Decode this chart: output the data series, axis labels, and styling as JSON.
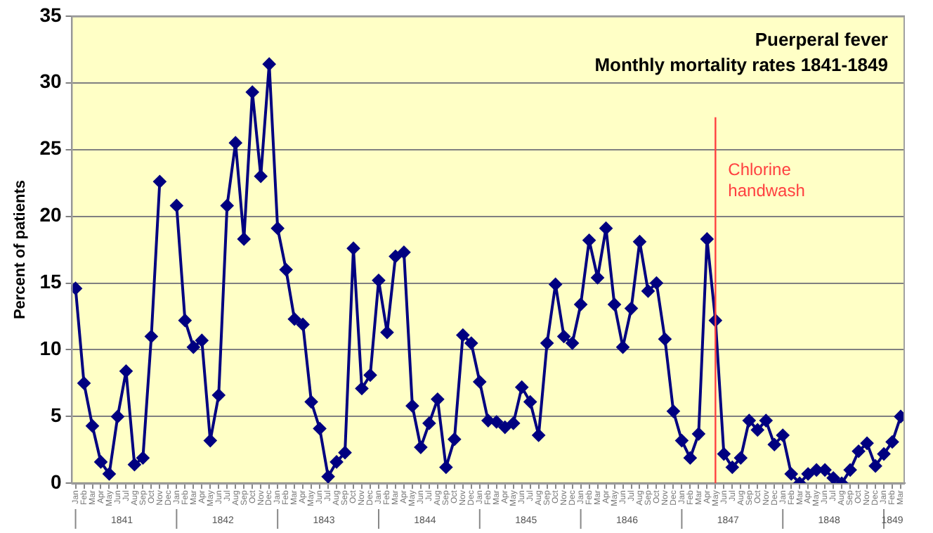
{
  "chart_data": {
    "type": "line",
    "title": "Puerperal fever",
    "subtitle": "Monthly mortality rates 1841-1849",
    "ylabel": "Percent of patients",
    "x": [
      "1841-01",
      "1841-02",
      "1841-03",
      "1841-04",
      "1841-05",
      "1841-06",
      "1841-07",
      "1841-08",
      "1841-09",
      "1841-10",
      "1841-11",
      "1841-12",
      "1842-01",
      "1842-02",
      "1842-03",
      "1842-04",
      "1842-05",
      "1842-06",
      "1842-07",
      "1842-08",
      "1842-09",
      "1842-10",
      "1842-11",
      "1842-12",
      "1843-01",
      "1843-02",
      "1843-03",
      "1843-04",
      "1843-05",
      "1843-06",
      "1843-07",
      "1843-08",
      "1843-09",
      "1843-10",
      "1843-11",
      "1843-12",
      "1844-01",
      "1844-02",
      "1844-03",
      "1844-04",
      "1844-05",
      "1844-06",
      "1844-07",
      "1844-08",
      "1844-09",
      "1844-10",
      "1844-11",
      "1844-12",
      "1845-01",
      "1845-02",
      "1845-03",
      "1845-04",
      "1845-05",
      "1845-06",
      "1845-07",
      "1845-08",
      "1845-09",
      "1845-10",
      "1845-11",
      "1845-12",
      "1846-01",
      "1846-02",
      "1846-03",
      "1846-04",
      "1846-05",
      "1846-06",
      "1846-07",
      "1846-08",
      "1846-09",
      "1846-10",
      "1846-11",
      "1846-12",
      "1847-01",
      "1847-02",
      "1847-03",
      "1847-04",
      "1847-05",
      "1847-06",
      "1847-07",
      "1847-08",
      "1847-09",
      "1847-10",
      "1847-11",
      "1847-12",
      "1848-01",
      "1848-02",
      "1848-03",
      "1848-04",
      "1848-05",
      "1848-06",
      "1848-07",
      "1848-08",
      "1848-09",
      "1848-10",
      "1848-11",
      "1848-12",
      "1849-01",
      "1849-02",
      "1849-03"
    ],
    "series": [
      {
        "color": "#000080",
        "values": [
          14.6,
          7.5,
          4.3,
          1.6,
          0.7,
          5.0,
          8.4,
          1.4,
          1.9,
          11.0,
          22.6,
          null,
          20.8,
          12.2,
          10.2,
          10.7,
          3.2,
          6.6,
          20.8,
          25.5,
          18.3,
          29.3,
          23.0,
          31.4,
          19.1,
          16.0,
          12.3,
          11.9,
          6.1,
          4.1,
          0.5,
          1.6,
          2.3,
          17.6,
          7.1,
          8.1,
          15.2,
          11.3,
          17.0,
          17.3,
          5.8,
          2.7,
          4.5,
          6.3,
          1.2,
          3.3,
          11.1,
          10.5,
          7.6,
          4.7,
          4.6,
          4.2,
          4.5,
          7.2,
          6.1,
          3.6,
          10.5,
          14.9,
          11.0,
          10.5,
          13.4,
          18.2,
          15.4,
          19.1,
          13.4,
          10.2,
          13.1,
          18.1,
          14.4,
          15.0,
          10.8,
          5.4,
          3.2,
          1.9,
          3.7,
          18.3,
          12.2,
          2.2,
          1.2,
          1.9,
          4.7,
          4.0,
          4.7,
          2.9,
          3.6,
          0.7,
          0.0,
          0.7,
          1.0,
          1.0,
          0.4,
          0.0,
          1.0,
          2.4,
          3.0,
          1.3,
          2.2,
          3.1,
          5.0
        ]
      }
    ],
    "marker": "diamond",
    "line_style": "solid",
    "grid": "y",
    "ylim": [
      0,
      35
    ],
    "yticks": [
      0,
      5,
      10,
      15,
      20,
      25,
      30,
      35
    ],
    "xlim": [
      "1840-12-16",
      "1849-03-16"
    ],
    "xticks": [
      {
        "value": "1841-01",
        "label": "Jan"
      },
      {
        "value": "1841-02",
        "label": "Feb"
      },
      {
        "value": "1841-03",
        "label": "Mar"
      },
      {
        "value": "1841-04",
        "label": "Apr"
      },
      {
        "value": "1841-05",
        "label": "May"
      },
      {
        "value": "1841-06",
        "label": "Jun"
      },
      {
        "value": "1841-07",
        "label": "Jul"
      },
      {
        "value": "1841-08",
        "label": "Aug"
      },
      {
        "value": "1841-09",
        "label": "Sep"
      },
      {
        "value": "1841-10",
        "label": "Oct"
      },
      {
        "value": "1841-11",
        "label": "Nov"
      },
      {
        "value": "1841-12",
        "label": "Dec"
      },
      {
        "value": "1842-01",
        "label": "Jan"
      },
      {
        "value": "1842-02",
        "label": "Feb"
      },
      {
        "value": "1842-03",
        "label": "Mar"
      },
      {
        "value": "1842-04",
        "label": "Apr"
      },
      {
        "value": "1842-05",
        "label": "May"
      },
      {
        "value": "1842-06",
        "label": "Jun"
      },
      {
        "value": "1842-07",
        "label": "Jul"
      },
      {
        "value": "1842-08",
        "label": "Aug"
      },
      {
        "value": "1842-09",
        "label": "Sep"
      },
      {
        "value": "1842-10",
        "label": "Oct"
      },
      {
        "value": "1842-11",
        "label": "Nov"
      },
      {
        "value": "1842-12",
        "label": "Dec"
      },
      {
        "value": "1843-01",
        "label": "Jan"
      },
      {
        "value": "1843-02",
        "label": "Feb"
      },
      {
        "value": "1843-03",
        "label": "Mar"
      },
      {
        "value": "1843-04",
        "label": "Apr"
      },
      {
        "value": "1843-05",
        "label": "May"
      },
      {
        "value": "1843-06",
        "label": "Jun"
      },
      {
        "value": "1843-07",
        "label": "Jul"
      },
      {
        "value": "1843-08",
        "label": "Aug"
      },
      {
        "value": "1843-09",
        "label": "Sep"
      },
      {
        "value": "1843-10",
        "label": "Oct"
      },
      {
        "value": "1843-11",
        "label": "Nov"
      },
      {
        "value": "1843-12",
        "label": "Dec"
      },
      {
        "value": "1844-01",
        "label": "Jan"
      },
      {
        "value": "1844-02",
        "label": "Feb"
      },
      {
        "value": "1844-03",
        "label": "Mar"
      },
      {
        "value": "1844-04",
        "label": "Apr"
      },
      {
        "value": "1844-05",
        "label": "May"
      },
      {
        "value": "1844-06",
        "label": "Jun"
      },
      {
        "value": "1844-07",
        "label": "Jul"
      },
      {
        "value": "1844-08",
        "label": "Aug"
      },
      {
        "value": "1844-09",
        "label": "Sep"
      },
      {
        "value": "1844-10",
        "label": "Oct"
      },
      {
        "value": "1844-11",
        "label": "Nov"
      },
      {
        "value": "1844-12",
        "label": "Dec"
      },
      {
        "value": "1845-01",
        "label": "Jan"
      },
      {
        "value": "1845-02",
        "label": "Feb"
      },
      {
        "value": "1845-03",
        "label": "Mar"
      },
      {
        "value": "1845-04",
        "label": "Apr"
      },
      {
        "value": "1845-05",
        "label": "May"
      },
      {
        "value": "1845-06",
        "label": "Jun"
      },
      {
        "value": "1845-07",
        "label": "Jul"
      },
      {
        "value": "1845-08",
        "label": "Aug"
      },
      {
        "value": "1845-09",
        "label": "Sep"
      },
      {
        "value": "1845-10",
        "label": "Oct"
      },
      {
        "value": "1845-11",
        "label": "Nov"
      },
      {
        "value": "1845-12",
        "label": "Dec"
      },
      {
        "value": "1846-01",
        "label": "Jan"
      },
      {
        "value": "1846-02",
        "label": "Feb"
      },
      {
        "value": "1846-03",
        "label": "Mar"
      },
      {
        "value": "1846-04",
        "label": "Apr"
      },
      {
        "value": "1846-05",
        "label": "May"
      },
      {
        "value": "1846-06",
        "label": "Jun"
      },
      {
        "value": "1846-07",
        "label": "Jul"
      },
      {
        "value": "1846-08",
        "label": "Aug"
      },
      {
        "value": "1846-09",
        "label": "Sep"
      },
      {
        "value": "1846-10",
        "label": "Oct"
      },
      {
        "value": "1846-11",
        "label": "Nov"
      },
      {
        "value": "1846-12",
        "label": "Dec"
      },
      {
        "value": "1847-01",
        "label": "Jan"
      },
      {
        "value": "1847-02",
        "label": "Feb"
      },
      {
        "value": "1847-03",
        "label": "Mar"
      },
      {
        "value": "1847-04",
        "label": "Apr"
      },
      {
        "value": "1847-05",
        "label": "May"
      },
      {
        "value": "1847-06",
        "label": "Jun"
      },
      {
        "value": "1847-07",
        "label": "Jul"
      },
      {
        "value": "1847-08",
        "label": "Aug"
      },
      {
        "value": "1847-09",
        "label": "Sep"
      },
      {
        "value": "1847-10",
        "label": "Oct"
      },
      {
        "value": "1847-11",
        "label": "Nov"
      },
      {
        "value": "1847-12",
        "label": "Dec"
      },
      {
        "value": "1848-01",
        "label": "Jan"
      },
      {
        "value": "1848-02",
        "label": "Feb"
      },
      {
        "value": "1848-03",
        "label": "Mar"
      },
      {
        "value": "1848-04",
        "label": "Apr"
      },
      {
        "value": "1848-05",
        "label": "May"
      },
      {
        "value": "1848-06",
        "label": "Jun"
      },
      {
        "value": "1848-07",
        "label": "Jul"
      },
      {
        "value": "1848-08",
        "label": "Aug"
      },
      {
        "value": "1848-09",
        "label": "Sep"
      },
      {
        "value": "1848-10",
        "label": "Oct"
      },
      {
        "value": "1848-11",
        "label": "Nov"
      },
      {
        "value": "1848-12",
        "label": "Dec"
      },
      {
        "value": "1849-01",
        "label": "Jan"
      },
      {
        "value": "1849-02",
        "label": "Feb"
      },
      {
        "value": "1849-03",
        "label": "Mar"
      }
    ],
    "ref_lines": [
      {
        "axis": "x",
        "value": "1847-05",
        "label": "Chlorine handwash",
        "color": "#ff4040"
      }
    ],
    "annotations": [
      "1841",
      "1842",
      "1843",
      "1844",
      "1845",
      "1846",
      "1847",
      "1848",
      "1849"
    ]
  }
}
